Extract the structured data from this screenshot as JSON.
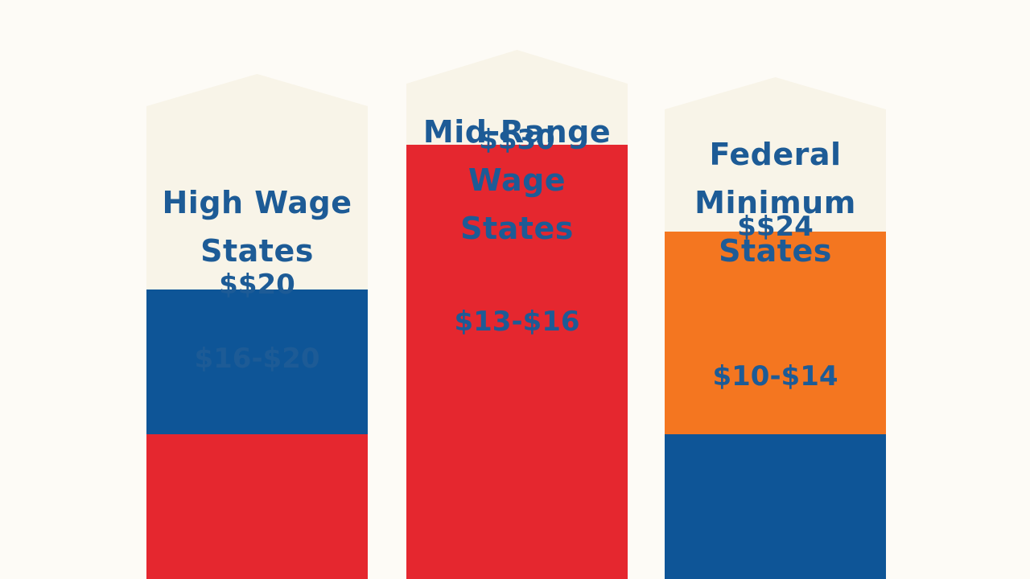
{
  "chart_data": {
    "type": "bar",
    "title": "",
    "categories": [
      "High Wage States",
      "Mid-Range Wage States",
      "Federal Minimum States"
    ],
    "category_lines": [
      [
        "High Wage",
        "States"
      ],
      [
        "Mid-Range",
        "Wage",
        "States"
      ],
      [
        "Federal",
        "Minimum",
        "States"
      ]
    ],
    "wage_ranges": [
      "$16-$20",
      "$13-$16",
      "$10-$14"
    ],
    "value_labels": [
      "$$20",
      "$$30",
      "$$24"
    ],
    "values": [
      20,
      30,
      24
    ],
    "ylim": [
      0,
      40
    ],
    "colors": {
      "panel": "#f8f4e8",
      "background": "#fdfbf6",
      "text": "#1d5b96"
    },
    "segment_colors": [
      [
        "#e5272f",
        "#0e5597"
      ],
      [
        "#e5272f"
      ],
      [
        "#0e5597",
        "#f47620"
      ]
    ],
    "segment_values": [
      [
        10,
        10
      ],
      [
        30
      ],
      [
        10,
        14
      ]
    ]
  }
}
